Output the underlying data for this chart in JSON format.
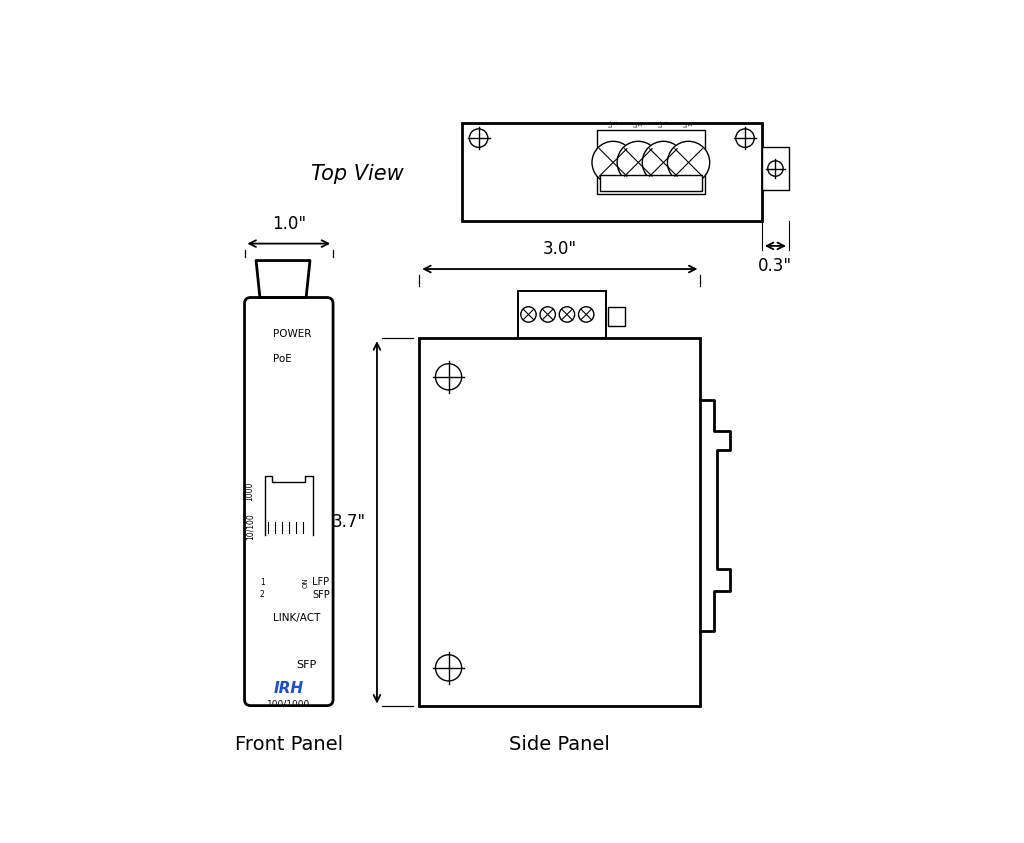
{
  "bg_color": "#ffffff",
  "line_color": "#000000",
  "blue_color": "#1a4fd6",
  "top_view_label": "Top View",
  "front_panel_label": "Front Panel",
  "side_panel_label": "Side Panel",
  "dim_03": "0.3\"",
  "dim_10": "1.0\"",
  "dim_30": "3.0\"",
  "dim_37": "3.7\""
}
